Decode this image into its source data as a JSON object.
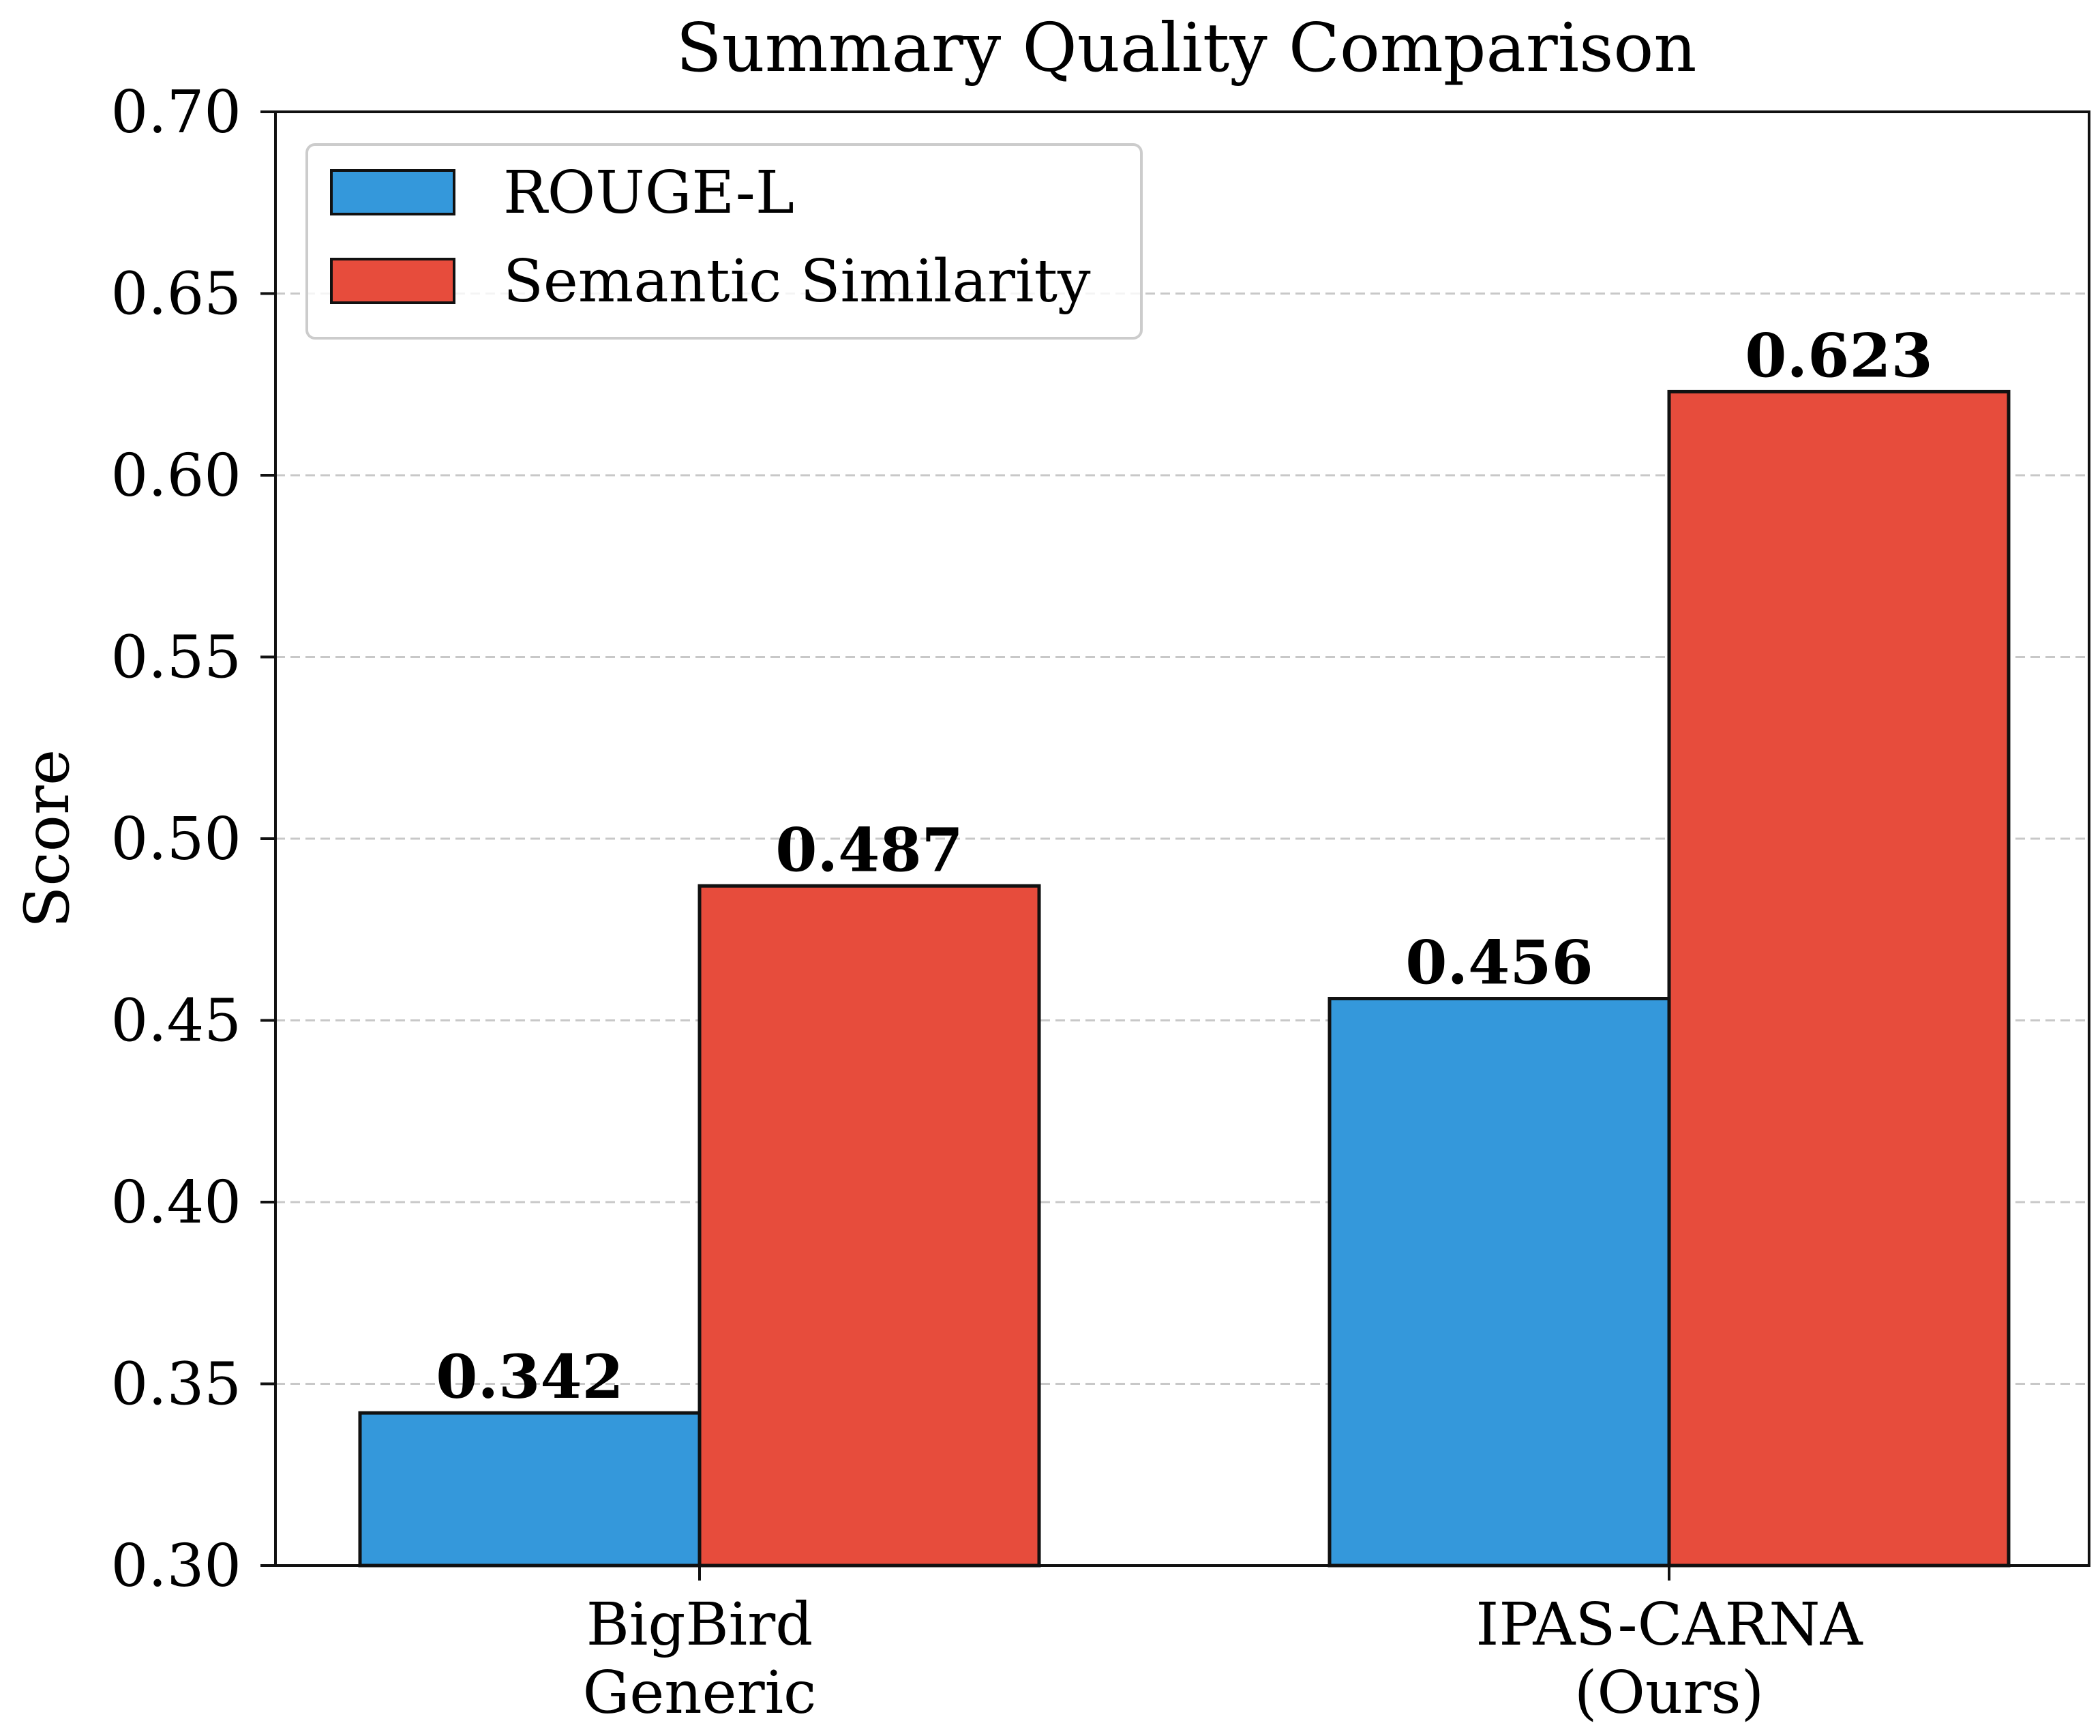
{
  "chart_data": {
    "type": "bar",
    "title": "Summary Quality Comparison",
    "xlabel": "",
    "ylabel": "Score",
    "ylim": [
      0.3,
      0.7
    ],
    "yticks": [
      "0.30",
      "0.35",
      "0.40",
      "0.45",
      "0.50",
      "0.55",
      "0.60",
      "0.65",
      "0.70"
    ],
    "grid": true,
    "legend_position": "top-left",
    "categories": [
      [
        "BigBird",
        "Generic"
      ],
      [
        "IPAS-CARNA",
        "(Ours)"
      ]
    ],
    "series": [
      {
        "name": "ROUGE-L",
        "color": "#3498db",
        "values": [
          0.342,
          0.456
        ],
        "labels": [
          "0.342",
          "0.456"
        ]
      },
      {
        "name": "Semantic Similarity",
        "color": "#e74c3c",
        "values": [
          0.487,
          0.623
        ],
        "labels": [
          "0.487",
          "0.623"
        ]
      }
    ],
    "bar_edge_color": "#111111",
    "grid_color": "#c8c8c8"
  }
}
